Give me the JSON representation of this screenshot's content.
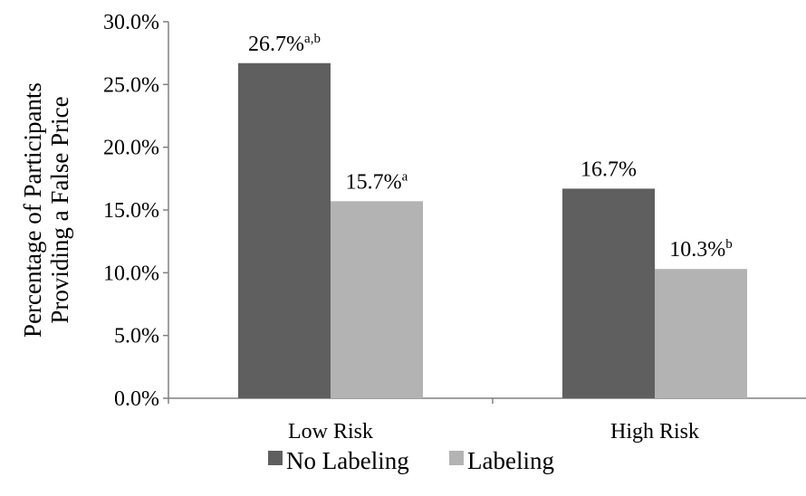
{
  "chart_data": {
    "type": "bar",
    "categories": [
      "Low Risk",
      "High Risk"
    ],
    "series": [
      {
        "name": "No Labeling",
        "color": "#5f5f5f",
        "values": [
          26.7,
          16.7
        ],
        "labels": [
          "26.7%",
          "16.7%"
        ],
        "superscripts": [
          "a,b",
          ""
        ]
      },
      {
        "name": "Labeling",
        "color": "#b3b3b3",
        "values": [
          15.7,
          10.3
        ],
        "labels": [
          "15.7%",
          "10.3%"
        ],
        "superscripts": [
          "a",
          "b"
        ]
      }
    ],
    "ylabel_lines": [
      "Percentage of Participants",
      "Providing a False Price"
    ],
    "ylim": [
      0,
      30
    ],
    "yticks": [
      0,
      5,
      10,
      15,
      20,
      25,
      30
    ],
    "ytick_labels": [
      "0.0%",
      "5.0%",
      "10.0%",
      "15.0%",
      "20.0%",
      "25.0%",
      "30.0%"
    ],
    "grid": false,
    "legend_position": "bottom"
  }
}
